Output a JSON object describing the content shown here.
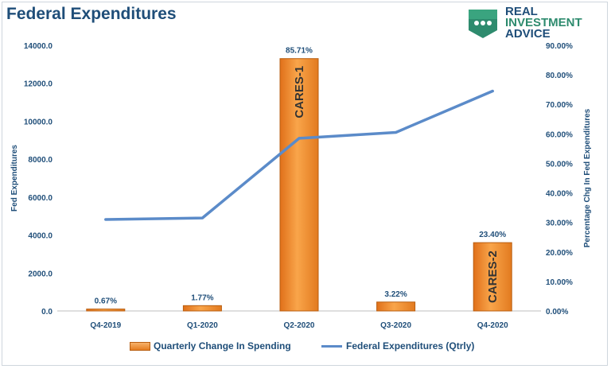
{
  "title": "Federal Expenditures",
  "logo": {
    "line1": "REAL",
    "line2": "INVESTMENT",
    "line3": "ADVICE"
  },
  "colors": {
    "bar": "#f28c28",
    "bar_edge": "#b85e10",
    "line": "#5b8bc9",
    "text": "#1f4e79",
    "grid": "#d9d9d9"
  },
  "chart_data": {
    "type": "bar+line",
    "categories": [
      "Q4-2019",
      "Q1-2020",
      "Q2-2020",
      "Q3-2020",
      "Q4-2020"
    ],
    "series": [
      {
        "name": "Quarterly Change In Spending",
        "type": "bar",
        "axis": "left",
        "values": [
          100,
          280,
          13300,
          470,
          3600
        ],
        "data_labels": [
          "0.67%",
          "1.77%",
          "85.71%",
          "3.22%",
          "23.40%"
        ],
        "bar_text": [
          "",
          "",
          "CARES-1",
          "",
          "CARES-2"
        ]
      },
      {
        "name": "Federal Expenditures (Qtrly)",
        "type": "line",
        "axis": "right",
        "values": [
          0.31,
          0.315,
          0.585,
          0.605,
          0.745
        ]
      }
    ],
    "y_left": {
      "label": "Fed Expenditures",
      "range": [
        0,
        14000
      ],
      "ticks": [
        "0.0",
        "2000.0",
        "4000.0",
        "6000.0",
        "8000.0",
        "10000.0",
        "12000.0",
        "14000.0"
      ]
    },
    "y_right": {
      "label": "Percentage Chg In Fed Expenditures",
      "range": [
        0,
        0.9
      ],
      "ticks": [
        "0.00%",
        "10.00%",
        "20.00%",
        "30.00%",
        "40.00%",
        "50.00%",
        "60.00%",
        "70.00%",
        "80.00%",
        "90.00%"
      ]
    },
    "legend_position": "bottom",
    "grid": false
  }
}
